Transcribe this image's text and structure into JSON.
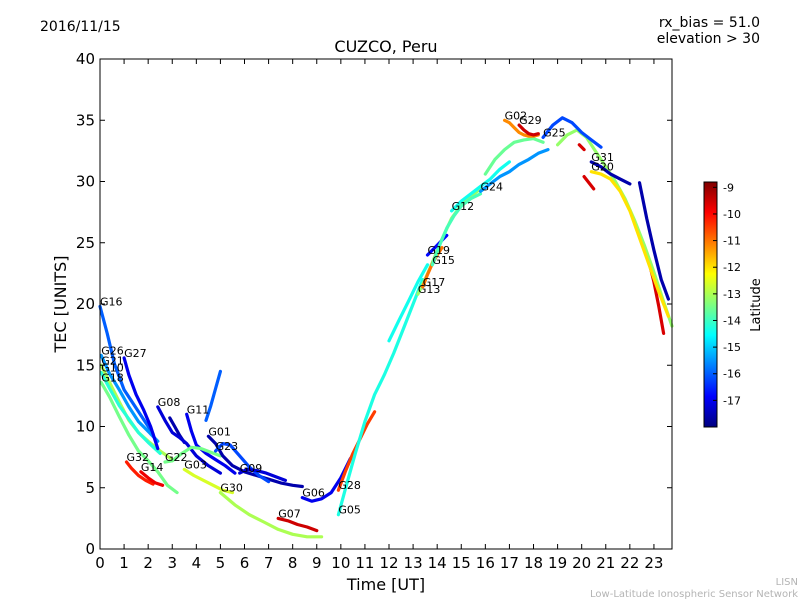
{
  "header": {
    "date": "2016/11/15",
    "bias": "rx_bias = 51.0",
    "elevation": "elevation > 30"
  },
  "footer": {
    "org_short": "LISN",
    "org_long": "Low-Latitude Ionospheric Sensor Network"
  },
  "chart_data": {
    "type": "line",
    "title": "CUZCO, Peru",
    "xlabel": "Time [UT]",
    "ylabel": "TEC [UNITS]",
    "xlim": [
      0,
      23.75
    ],
    "ylim": [
      0,
      40
    ],
    "xticks": [
      "0",
      "1",
      "2",
      "3",
      "4",
      "5",
      "6",
      "7",
      "8",
      "9",
      "10",
      "11",
      "12",
      "13",
      "14",
      "15",
      "16",
      "17",
      "18",
      "19",
      "20",
      "21",
      "22",
      "23"
    ],
    "yticks": [
      "0",
      "5",
      "10",
      "15",
      "20",
      "25",
      "30",
      "35",
      "40"
    ],
    "grid": false,
    "colorbar": {
      "label": "Latitude",
      "range": [
        -18,
        -8.8
      ],
      "ticks": [
        "-9",
        "-10",
        "-11",
        "-12",
        "-13",
        "-14",
        "-15",
        "-16",
        "-17"
      ],
      "colormap": [
        "#00007f",
        "#0000ff",
        "#007fff",
        "#00ffff",
        "#7fff7f",
        "#ffff00",
        "#ff7f00",
        "#ff0000",
        "#7f0000"
      ]
    },
    "series": [
      {
        "name": "G16",
        "lat": -16.0,
        "x": [
          0.0,
          0.3,
          0.6,
          1.0,
          1.4,
          1.8,
          2.2
        ],
        "y": [
          19.8,
          17.6,
          15.1,
          13.0,
          11.8,
          10.6,
          9.4
        ]
      },
      {
        "name": "G26",
        "lat": -15.5,
        "x": [
          0.05,
          0.4,
          0.8,
          1.2,
          1.6,
          2.0,
          2.4
        ],
        "y": [
          15.8,
          14.3,
          13.0,
          11.6,
          10.4,
          9.6,
          8.8
        ]
      },
      {
        "name": "G21",
        "lat": -13.0,
        "x": [
          0.05,
          0.4,
          0.8,
          1.2,
          1.6,
          2.0,
          2.5,
          3.0
        ],
        "y": [
          15.0,
          13.6,
          12.0,
          10.5,
          9.5,
          8.8,
          8.0,
          7.3
        ]
      },
      {
        "name": "G10",
        "lat": -14.2,
        "x": [
          0.05,
          0.4,
          0.8,
          1.2,
          1.6,
          2.0,
          2.5
        ],
        "y": [
          14.4,
          13.1,
          11.7,
          10.6,
          9.5,
          8.7,
          7.8
        ]
      },
      {
        "name": "G18",
        "lat": -13.5,
        "x": [
          0.05,
          0.4,
          0.8,
          1.2,
          1.6,
          2.0,
          2.4,
          2.8,
          3.2
        ],
        "y": [
          13.6,
          12.4,
          10.8,
          9.3,
          8.0,
          7.2,
          6.3,
          5.2,
          4.6
        ]
      },
      {
        "name": "G27",
        "lat": -17.0,
        "x": [
          1.0,
          1.2,
          1.5,
          1.8,
          2.1,
          2.4
        ],
        "y": [
          15.6,
          14.2,
          12.6,
          11.4,
          10.0,
          8.2
        ]
      },
      {
        "name": "G08",
        "lat": -17.2,
        "x": [
          2.4,
          2.7,
          3.0,
          3.3,
          3.6,
          4.0,
          4.5,
          5.0
        ],
        "y": [
          11.6,
          10.5,
          9.5,
          9.1,
          8.6,
          7.6,
          6.8,
          6.2
        ]
      },
      {
        "name": "G11",
        "lat": -17.0,
        "x": [
          3.6,
          3.8,
          4.0,
          4.4,
          4.8,
          5.2,
          5.6
        ],
        "y": [
          11.0,
          9.6,
          8.5,
          7.8,
          7.3,
          6.8,
          6.2
        ]
      },
      {
        "name": "G32",
        "lat": -10.2,
        "x": [
          1.1,
          1.3,
          1.6,
          1.9,
          2.2
        ],
        "y": [
          7.1,
          6.6,
          6.0,
          5.6,
          5.3
        ]
      },
      {
        "name": "G14",
        "lat": -9.8,
        "x": [
          1.7,
          2.0,
          2.3,
          2.6
        ],
        "y": [
          6.3,
          5.8,
          5.4,
          5.2
        ]
      },
      {
        "name": "G22",
        "lat": -13.5,
        "x": [
          2.7,
          3.0,
          3.4,
          3.8,
          4.2,
          4.6,
          5.0
        ],
        "y": [
          7.1,
          7.2,
          7.8,
          8.3,
          8.2,
          7.9,
          7.6
        ]
      },
      {
        "name": "G03",
        "lat": -12.6,
        "x": [
          3.5,
          3.9,
          4.3,
          4.7,
          5.1,
          5.5
        ],
        "y": [
          6.5,
          6.0,
          5.6,
          5.2,
          4.8,
          4.6
        ]
      },
      {
        "name": "G01",
        "lat": -17.6,
        "x": [
          4.5,
          4.8,
          5.1,
          5.5,
          6.0,
          6.5,
          7.0,
          7.5,
          8.0,
          8.4
        ],
        "y": [
          9.2,
          8.6,
          7.6,
          6.8,
          6.3,
          6.0,
          5.7,
          5.4,
          5.2,
          5.1
        ]
      },
      {
        "name": "G23",
        "lat": -16.2,
        "x": [
          4.8,
          5.1,
          5.4,
          5.8,
          6.2,
          6.6,
          7.0
        ],
        "y": [
          8.0,
          8.6,
          8.5,
          7.6,
          6.7,
          6.0,
          5.5
        ]
      },
      {
        "name": "G09",
        "lat": -17.2,
        "x": [
          5.8,
          6.1,
          6.5,
          6.9,
          7.3,
          7.7
        ],
        "y": [
          6.2,
          6.5,
          6.4,
          6.2,
          5.9,
          5.6
        ]
      },
      {
        "name": "G07",
        "lat": -9.5,
        "x": [
          7.4,
          7.8,
          8.2,
          8.6,
          9.0
        ],
        "y": [
          2.5,
          2.3,
          2.0,
          1.8,
          1.5
        ]
      },
      {
        "name": "G30",
        "lat": -13.0,
        "x": [
          5.0,
          5.6,
          6.2,
          6.8,
          7.4,
          8.0,
          8.6,
          9.2
        ],
        "y": [
          4.6,
          3.6,
          2.8,
          2.2,
          1.6,
          1.2,
          1.0,
          1.0
        ]
      },
      {
        "name": "G06",
        "lat": -17.0,
        "x": [
          8.4,
          8.8,
          9.2,
          9.6,
          10.0,
          10.4
        ],
        "y": [
          4.2,
          3.9,
          4.1,
          4.6,
          5.8,
          7.4
        ]
      },
      {
        "name": "G28",
        "lat": -10.5,
        "x": [
          9.9,
          10.2,
          10.5,
          10.8,
          11.1,
          11.4
        ],
        "y": [
          4.8,
          6.4,
          7.8,
          9.0,
          10.2,
          11.2
        ]
      },
      {
        "name": "G05",
        "lat": -14.3,
        "x": [
          9.9,
          10.2,
          10.6,
          11.0,
          11.4,
          11.8,
          12.2,
          12.6,
          13.0,
          13.4
        ],
        "y": [
          2.8,
          5.0,
          7.8,
          10.4,
          12.6,
          14.2,
          16.0,
          18.0,
          20.0,
          22.0
        ]
      },
      {
        "name": "G13",
        "lat": -13.2,
        "x": [
          13.2,
          13.5,
          13.8,
          14.2,
          14.6,
          15.0,
          15.4,
          15.8
        ],
        "y": [
          20.8,
          22.0,
          23.4,
          25.3,
          27.0,
          28.1,
          28.8,
          29.4
        ]
      },
      {
        "name": "G17",
        "lat": -11.0,
        "x": [
          13.4,
          13.6,
          13.8,
          14.0,
          14.2
        ],
        "y": [
          21.4,
          22.4,
          23.3,
          24.0,
          24.6
        ]
      },
      {
        "name": "G19",
        "lat": -16.8,
        "x": [
          13.6,
          13.8,
          14.0,
          14.2,
          14.4
        ],
        "y": [
          24.0,
          24.4,
          24.8,
          25.2,
          25.6
        ]
      },
      {
        "name": "G15",
        "lat": -13.9,
        "x": [
          13.8,
          14.1,
          14.4,
          14.7,
          15.0,
          15.4,
          15.8
        ],
        "y": [
          23.2,
          24.8,
          26.2,
          27.2,
          28.0,
          28.6,
          29.0
        ]
      },
      {
        "name": "G12",
        "lat": -14.4,
        "x": [
          14.6,
          15.0,
          15.4,
          15.8,
          16.2,
          16.6,
          17.0
        ],
        "y": [
          27.6,
          28.4,
          29.0,
          29.6,
          30.2,
          31.0,
          31.6
        ]
      },
      {
        "name": "G24",
        "lat": -15.5,
        "x": [
          15.8,
          16.2,
          16.6,
          17.0,
          17.4,
          17.8,
          18.2,
          18.6
        ],
        "y": [
          29.2,
          29.8,
          30.4,
          30.8,
          31.4,
          31.8,
          32.3,
          32.6
        ]
      },
      {
        "name": "G02",
        "lat": -11.2,
        "x": [
          16.8,
          17.0,
          17.2,
          17.4,
          17.6,
          17.8,
          18.0,
          18.2
        ],
        "y": [
          35.0,
          34.8,
          34.4,
          34.0,
          33.8,
          33.7,
          33.7,
          33.8
        ]
      },
      {
        "name": "G29",
        "lat": -9.5,
        "x": [
          17.4,
          17.6,
          17.8,
          18.0,
          18.2
        ],
        "y": [
          34.6,
          34.2,
          33.9,
          33.8,
          33.9
        ]
      },
      {
        "name": "G25",
        "lat": -16.2,
        "x": [
          18.4,
          18.8,
          19.2,
          19.6,
          20.0,
          20.4,
          20.8
        ],
        "y": [
          33.6,
          34.6,
          35.2,
          34.8,
          34.0,
          33.4,
          32.8
        ]
      },
      {
        "name": "G31",
        "lat": -17.6,
        "x": [
          20.4,
          20.8,
          21.2,
          21.6,
          22.0
        ],
        "y": [
          31.6,
          31.2,
          30.6,
          30.2,
          29.8
        ]
      },
      {
        "name": "G20",
        "lat": -12.0,
        "x": [
          20.4,
          20.8,
          21.2,
          21.6,
          22.0,
          22.4,
          22.8,
          23.2,
          23.6
        ],
        "y": [
          30.8,
          30.6,
          30.2,
          29.2,
          27.6,
          25.4,
          23.2,
          21.0,
          19.0
        ]
      }
    ],
    "unlabeled_series": [
      {
        "lat": -16.0,
        "x": [
          4.4,
          4.6,
          4.8,
          5.0
        ],
        "y": [
          10.5,
          11.7,
          13.1,
          14.5
        ]
      },
      {
        "lat": -17.6,
        "x": [
          2.9,
          3.1,
          3.3,
          3.5
        ],
        "y": [
          10.7,
          10.0,
          9.3,
          8.7
        ]
      },
      {
        "lat": -17.6,
        "x": [
          22.4,
          22.7,
          23.0,
          23.3,
          23.6
        ],
        "y": [
          29.9,
          27.0,
          24.4,
          22.0,
          20.4
        ]
      },
      {
        "lat": -9.6,
        "x": [
          20.1,
          20.3,
          20.5
        ],
        "y": [
          30.4,
          29.9,
          29.4
        ]
      },
      {
        "lat": -9.6,
        "x": [
          22.8,
          23.0,
          23.2,
          23.4
        ],
        "y": [
          23.4,
          21.8,
          19.8,
          17.6
        ]
      },
      {
        "lat": -9.6,
        "x": [
          19.9,
          20.1
        ],
        "y": [
          33.0,
          32.6
        ]
      },
      {
        "lat": -13.2,
        "x": [
          19.0,
          19.4,
          19.8,
          20.2,
          20.6,
          21.0,
          21.4,
          21.8,
          22.2,
          22.6,
          23.0,
          23.4,
          23.75
        ],
        "y": [
          33.0,
          33.8,
          34.2,
          33.6,
          32.4,
          31.2,
          30.0,
          28.6,
          26.8,
          24.8,
          22.6,
          20.2,
          18.2
        ]
      },
      {
        "lat": -13.6,
        "x": [
          16.0,
          16.4,
          16.8,
          17.2,
          17.6,
          18.0,
          18.4
        ],
        "y": [
          30.6,
          31.8,
          32.6,
          33.2,
          33.4,
          33.5,
          33.2
        ]
      },
      {
        "lat": -14.4,
        "x": [
          12.0,
          12.4,
          12.8,
          13.2,
          13.6
        ],
        "y": [
          17.0,
          18.6,
          20.2,
          21.8,
          23.2
        ]
      }
    ]
  }
}
